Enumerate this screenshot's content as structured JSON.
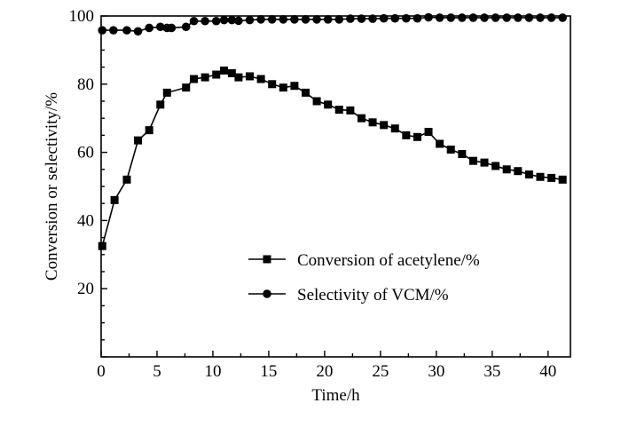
{
  "chart_data": {
    "type": "line",
    "title": "",
    "xlabel": "Time/h",
    "ylabel": "Conversion or selectivity/%",
    "xlim": [
      0,
      42
    ],
    "ylim": [
      0,
      100
    ],
    "xticks": [
      0,
      5,
      10,
      15,
      20,
      25,
      30,
      35,
      40
    ],
    "yticks": [
      20,
      40,
      60,
      80,
      100
    ],
    "grid": false,
    "legend_position": "lower-right",
    "series": [
      {
        "name": "Conversion of acetylene/%",
        "marker": "square",
        "color": "#000000",
        "x": [
          0.1,
          1.2,
          2.3,
          3.3,
          4.3,
          5.3,
          5.9,
          7.6,
          8.3,
          9.3,
          10.3,
          11.0,
          11.7,
          12.3,
          13.3,
          14.3,
          15.3,
          16.3,
          17.3,
          18.3,
          19.3,
          20.3,
          21.3,
          22.3,
          23.3,
          24.3,
          25.3,
          26.3,
          27.3,
          28.3,
          29.3,
          30.3,
          31.3,
          32.3,
          33.3,
          34.3,
          35.3,
          36.3,
          37.3,
          38.3,
          39.3,
          40.3,
          41.3
        ],
        "values": [
          32.5,
          46.0,
          52.0,
          63.5,
          66.5,
          74.0,
          77.5,
          79.0,
          81.5,
          82.0,
          82.8,
          84.0,
          83.2,
          82.0,
          82.3,
          81.5,
          80.0,
          79.0,
          79.5,
          77.5,
          75.0,
          74.0,
          72.5,
          72.3,
          70.0,
          68.8,
          68.0,
          67.0,
          65.0,
          64.5,
          66.0,
          62.5,
          60.8,
          59.5,
          57.5,
          57.0,
          56.0,
          55.0,
          54.5,
          53.5,
          52.8,
          52.5,
          52.0
        ]
      },
      {
        "name": "Selectivity of VCM/%",
        "marker": "circle",
        "color": "#000000",
        "x": [
          0.1,
          1.1,
          2.3,
          3.3,
          4.3,
          5.3,
          5.9,
          6.3,
          7.6,
          8.3,
          9.3,
          10.3,
          11.0,
          11.7,
          12.3,
          13.3,
          14.3,
          15.3,
          16.3,
          17.3,
          18.3,
          19.3,
          20.3,
          21.3,
          22.3,
          23.3,
          24.3,
          25.3,
          26.3,
          27.3,
          28.3,
          29.3,
          30.3,
          31.3,
          32.3,
          33.3,
          34.3,
          35.3,
          36.3,
          37.3,
          38.3,
          39.3,
          40.3,
          41.3
        ],
        "values": [
          95.8,
          95.8,
          95.8,
          95.5,
          96.5,
          96.8,
          96.5,
          96.5,
          96.8,
          98.5,
          98.5,
          98.5,
          98.8,
          98.8,
          98.6,
          98.8,
          99.0,
          99.0,
          99.0,
          99.0,
          99.0,
          99.0,
          99.0,
          99.0,
          99.2,
          99.2,
          99.2,
          99.3,
          99.3,
          99.3,
          99.3,
          99.6,
          99.5,
          99.5,
          99.5,
          99.5,
          99.5,
          99.5,
          99.5,
          99.5,
          99.5,
          99.5,
          99.5,
          99.5
        ]
      }
    ]
  }
}
